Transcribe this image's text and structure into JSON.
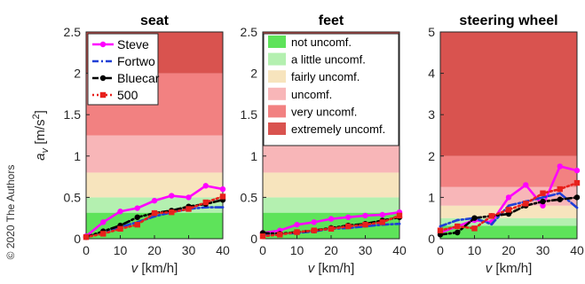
{
  "copyright": "© 2020 The Authors",
  "comfort_colors": {
    "not uncomf.": "#5ee35a",
    "a little uncomf.": "#b4f0b0",
    "fairly uncomf.": "#f7e4bd",
    "uncomf.": "#f8b6b8",
    "very uncomf.": "#f28181",
    "extremely uncomf.": "#d9534f"
  },
  "series_styles": [
    {
      "name": "Steve",
      "color": "#ff00ff",
      "dash": "solid",
      "marker": "circle"
    },
    {
      "name": "Fortwo",
      "color": "#1f3fd6",
      "dash": "dashdot",
      "marker": "none"
    },
    {
      "name": "Bluecar",
      "color": "#000000",
      "dash": "dashdot",
      "marker": "circle"
    },
    {
      "name": "500",
      "color": "#e8201c",
      "dash": "dot",
      "marker": "square"
    }
  ],
  "chart_data": [
    {
      "type": "line",
      "title": "seat",
      "xlabel": "v [km/h]",
      "ylabel": "a_v [m/s^2]",
      "xlim": [
        0,
        40
      ],
      "ylim": [
        0,
        2.5
      ],
      "xticks": [
        0,
        10,
        20,
        30,
        40
      ],
      "yticks": [
        0,
        0.5,
        1,
        1.5,
        2,
        2.5
      ],
      "ytick_labels": [
        "0",
        "0.5",
        "1",
        "1.5",
        "2",
        "2.5"
      ],
      "bands": [
        {
          "label": "not uncomf.",
          "from": 0,
          "to": 0.315
        },
        {
          "label": "a little uncomf.",
          "from": 0.315,
          "to": 0.5
        },
        {
          "label": "fairly uncomf.",
          "from": 0.5,
          "to": 0.8
        },
        {
          "label": "uncomf.",
          "from": 0.8,
          "to": 1.25
        },
        {
          "label": "very uncomf.",
          "from": 1.25,
          "to": 2.0
        },
        {
          "label": "extremely uncomf.",
          "from": 2.0,
          "to": 2.5
        }
      ],
      "legend": {
        "position": "top-left",
        "entries": [
          "Steve",
          "Fortwo",
          "Bluecar",
          "500"
        ]
      },
      "series": [
        {
          "name": "Steve",
          "x": [
            0,
            5,
            10,
            15,
            20,
            25,
            30,
            35,
            40
          ],
          "values": [
            0.03,
            0.2,
            0.33,
            0.37,
            0.46,
            0.52,
            0.5,
            0.64,
            0.6
          ]
        },
        {
          "name": "Fortwo",
          "x": [
            0,
            5,
            10,
            15,
            20,
            25,
            30,
            35,
            40
          ],
          "values": [
            0.02,
            0.08,
            0.14,
            0.2,
            0.27,
            0.32,
            0.36,
            0.38,
            0.38
          ]
        },
        {
          "name": "Bluecar",
          "x": [
            0,
            5,
            10,
            15,
            20,
            25,
            30,
            35,
            40
          ],
          "values": [
            0.02,
            0.09,
            0.16,
            0.26,
            0.31,
            0.34,
            0.39,
            0.42,
            0.47
          ]
        },
        {
          "name": "500",
          "x": [
            0,
            5,
            10,
            15,
            20,
            25,
            30,
            35,
            40
          ],
          "values": [
            0.02,
            0.06,
            0.12,
            0.17,
            0.31,
            0.32,
            0.36,
            0.44,
            0.51
          ]
        }
      ]
    },
    {
      "type": "line",
      "title": "feet",
      "xlabel": "v [km/h]",
      "ylabel": "",
      "xlim": [
        0,
        40
      ],
      "ylim": [
        0,
        2.5
      ],
      "xticks": [
        0,
        10,
        20,
        30,
        40
      ],
      "yticks": [
        0,
        0.5,
        1,
        1.5,
        2,
        2.5
      ],
      "ytick_labels": [
        "0",
        "0.5",
        "1",
        "1.5",
        "2",
        "2.5"
      ],
      "bands": [
        {
          "label": "not uncomf.",
          "from": 0,
          "to": 0.315
        },
        {
          "label": "a little uncomf.",
          "from": 0.315,
          "to": 0.5
        },
        {
          "label": "fairly uncomf.",
          "from": 0.5,
          "to": 0.8
        },
        {
          "label": "uncomf.",
          "from": 0.8,
          "to": 1.25
        },
        {
          "label": "very uncomf.",
          "from": 1.25,
          "to": 2.0
        },
        {
          "label": "extremely uncomf.",
          "from": 2.0,
          "to": 2.5
        }
      ],
      "legend": {
        "position": "top-left",
        "entries": [
          "not uncomf.",
          "a little uncomf.",
          "fairly uncomf.",
          "uncomf.",
          "very uncomf.",
          "extremely uncomf."
        ]
      },
      "series": [
        {
          "name": "Steve",
          "x": [
            0,
            5,
            10,
            15,
            20,
            25,
            30,
            35,
            40
          ],
          "values": [
            0.07,
            0.1,
            0.17,
            0.2,
            0.24,
            0.26,
            0.28,
            0.29,
            0.32
          ]
        },
        {
          "name": "Fortwo",
          "x": [
            0,
            5,
            10,
            15,
            20,
            25,
            30,
            35,
            40
          ],
          "values": [
            0.05,
            0.06,
            0.07,
            0.09,
            0.12,
            0.13,
            0.15,
            0.17,
            0.18
          ]
        },
        {
          "name": "Bluecar",
          "x": [
            0,
            5,
            10,
            15,
            20,
            25,
            30,
            35,
            40
          ],
          "values": [
            0.07,
            0.06,
            0.08,
            0.1,
            0.13,
            0.16,
            0.18,
            0.22,
            0.26
          ]
        },
        {
          "name": "500",
          "x": [
            0,
            5,
            10,
            15,
            20,
            25,
            30,
            35,
            40
          ],
          "values": [
            0.03,
            0.05,
            0.08,
            0.1,
            0.12,
            0.15,
            0.17,
            0.2,
            0.28
          ]
        }
      ]
    },
    {
      "type": "line",
      "title": "steering wheel",
      "xlabel": "v [km/h]",
      "ylabel": "",
      "xlim": [
        0,
        40
      ],
      "ylim": [
        0,
        5
      ],
      "xticks": [
        0,
        10,
        20,
        30,
        40
      ],
      "yticks": [
        0,
        1,
        2,
        3,
        4,
        5
      ],
      "ytick_labels": [
        "0",
        "1",
        "2",
        "3",
        "4",
        "5"
      ],
      "bands": [
        {
          "label": "not uncomf.",
          "from": 0,
          "to": 0.315
        },
        {
          "label": "a little uncomf.",
          "from": 0.315,
          "to": 0.5
        },
        {
          "label": "fairly uncomf.",
          "from": 0.5,
          "to": 0.8
        },
        {
          "label": "uncomf.",
          "from": 0.8,
          "to": 1.25
        },
        {
          "label": "very uncomf.",
          "from": 1.25,
          "to": 2.0
        },
        {
          "label": "extremely uncomf.",
          "from": 2.0,
          "to": 5.0
        }
      ],
      "series": [
        {
          "name": "Steve",
          "x": [
            0,
            5,
            10,
            15,
            20,
            25,
            30,
            35,
            40
          ],
          "values": [
            0.15,
            0.3,
            0.45,
            0.4,
            1.0,
            1.3,
            0.8,
            1.75,
            1.65
          ]
        },
        {
          "name": "Fortwo",
          "x": [
            0,
            5,
            10,
            15,
            20,
            25,
            30,
            35,
            40
          ],
          "values": [
            0.3,
            0.45,
            0.5,
            0.35,
            0.8,
            0.9,
            1.0,
            1.1,
            0.75
          ]
        },
        {
          "name": "Bluecar",
          "x": [
            0,
            5,
            10,
            15,
            20,
            25,
            30,
            35,
            40
          ],
          "values": [
            0.1,
            0.15,
            0.5,
            0.55,
            0.6,
            0.8,
            0.9,
            0.95,
            1.0
          ]
        },
        {
          "name": "500",
          "x": [
            0,
            5,
            10,
            15,
            20,
            25,
            30,
            35,
            40
          ],
          "values": [
            0.2,
            0.3,
            0.25,
            0.55,
            0.7,
            0.85,
            1.1,
            1.2,
            1.35
          ]
        }
      ]
    }
  ]
}
